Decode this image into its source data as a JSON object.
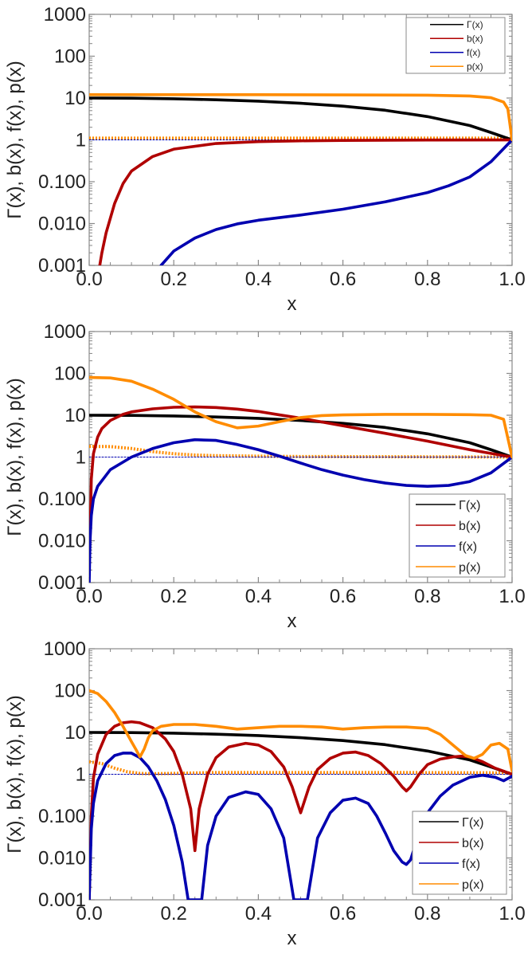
{
  "chart_data": [
    {
      "type": "line",
      "xlabel": "x",
      "ylabel": "Γ(x), b(x), f(x), p(x)",
      "xlim": [
        0.0,
        1.0
      ],
      "ylim": [
        0.001,
        1000
      ],
      "yscale": "log",
      "xticks": [
        "0.0",
        "0.2",
        "0.4",
        "0.6",
        "0.8",
        "1.0"
      ],
      "yticks": [
        "0.001",
        "0.010",
        "0.100",
        "1",
        "10",
        "100",
        "1000"
      ],
      "legend_position": "top-right",
      "legend": [
        "Γ(x)",
        "b(x)",
        "f(x)",
        "p(x)"
      ],
      "series": [
        {
          "name": "Γ(x)",
          "color": "#000000",
          "x": [
            0.0,
            0.1,
            0.2,
            0.3,
            0.4,
            0.5,
            0.6,
            0.7,
            0.8,
            0.9,
            0.95,
            1.0
          ],
          "y": [
            10,
            9.9,
            9.6,
            9.1,
            8.4,
            7.5,
            6.4,
            5.1,
            3.6,
            2.2,
            1.5,
            1.0
          ]
        },
        {
          "name": "b(x)",
          "color": "#b00000",
          "x": [
            0.025,
            0.03,
            0.04,
            0.06,
            0.08,
            0.1,
            0.15,
            0.2,
            0.3,
            0.4,
            0.5,
            0.6,
            0.8,
            1.0
          ],
          "y": [
            0.001,
            0.002,
            0.006,
            0.03,
            0.09,
            0.18,
            0.4,
            0.6,
            0.82,
            0.91,
            0.95,
            0.97,
            0.99,
            1.0
          ]
        },
        {
          "name": "f(x)",
          "color": "#0000b0",
          "x": [
            0.17,
            0.2,
            0.25,
            0.3,
            0.35,
            0.4,
            0.5,
            0.6,
            0.7,
            0.8,
            0.85,
            0.9,
            0.95,
            1.0
          ],
          "y": [
            0.001,
            0.0022,
            0.0045,
            0.0072,
            0.0098,
            0.012,
            0.016,
            0.022,
            0.033,
            0.055,
            0.08,
            0.13,
            0.3,
            1.0
          ]
        },
        {
          "name": "p(x)",
          "color": "#ff8c00",
          "x": [
            0.0,
            0.2,
            0.4,
            0.6,
            0.8,
            0.9,
            0.95,
            0.98,
            0.99,
            1.0
          ],
          "y": [
            12,
            12,
            12,
            11.9,
            11.7,
            11.2,
            10.2,
            8,
            5.5,
            1.0
          ]
        },
        {
          "name": "",
          "color": "#ff8c00",
          "style": "dotted",
          "x": [
            0.0,
            0.5,
            1.0
          ],
          "y": [
            1.1,
            1.1,
            1.1
          ]
        },
        {
          "name": "",
          "color": "#0000b0",
          "style": "thin",
          "x": [
            0.0,
            0.5,
            1.0
          ],
          "y": [
            1.0,
            1.0,
            1.0
          ]
        }
      ]
    },
    {
      "type": "line",
      "xlabel": "x",
      "ylabel": "Γ(x), b(x), f(x), p(x)",
      "xlim": [
        0.0,
        1.0
      ],
      "ylim": [
        0.001,
        1000
      ],
      "yscale": "log",
      "xticks": [
        "0.0",
        "0.2",
        "0.4",
        "0.6",
        "0.8",
        "1.0"
      ],
      "yticks": [
        "0.001",
        "0.010",
        "0.100",
        "1",
        "10",
        "100",
        "1000"
      ],
      "legend_position": "bottom-right",
      "legend": [
        "Γ(x)",
        "b(x)",
        "f(x)",
        "p(x)"
      ],
      "series": [
        {
          "name": "Γ(x)",
          "color": "#000000",
          "x": [
            0.0,
            0.1,
            0.2,
            0.3,
            0.4,
            0.5,
            0.6,
            0.7,
            0.8,
            0.9,
            0.95,
            1.0
          ],
          "y": [
            10,
            9.9,
            9.6,
            9.1,
            8.4,
            7.5,
            6.4,
            5.1,
            3.6,
            2.2,
            1.5,
            1.0
          ]
        },
        {
          "name": "b(x)",
          "color": "#b00000",
          "x": [
            0.002,
            0.005,
            0.01,
            0.02,
            0.03,
            0.05,
            0.08,
            0.1,
            0.15,
            0.2,
            0.25,
            0.3,
            0.35,
            0.4,
            0.45,
            0.5,
            0.6,
            0.7,
            0.8,
            0.9,
            1.0
          ],
          "y": [
            0.01,
            0.3,
            1.2,
            3,
            4.8,
            7.5,
            10.5,
            12,
            14.2,
            15.5,
            15.8,
            15.3,
            14,
            12.3,
            10.2,
            8.5,
            5.6,
            3.7,
            2.4,
            1.5,
            1.0
          ]
        },
        {
          "name": "f(x)",
          "color": "#0000b0",
          "x": [
            0.0,
            0.002,
            0.005,
            0.01,
            0.02,
            0.05,
            0.1,
            0.15,
            0.2,
            0.25,
            0.3,
            0.35,
            0.4,
            0.45,
            0.5,
            0.55,
            0.6,
            0.65,
            0.7,
            0.75,
            0.8,
            0.85,
            0.9,
            0.95,
            1.0
          ],
          "y": [
            0.001,
            0.01,
            0.04,
            0.1,
            0.2,
            0.5,
            1.0,
            1.6,
            2.2,
            2.6,
            2.5,
            2.0,
            1.5,
            1.05,
            0.72,
            0.5,
            0.37,
            0.29,
            0.24,
            0.21,
            0.2,
            0.21,
            0.26,
            0.42,
            1.0
          ]
        },
        {
          "name": "p(x)",
          "color": "#ff8c00",
          "x": [
            0.0,
            0.05,
            0.1,
            0.15,
            0.2,
            0.25,
            0.3,
            0.35,
            0.4,
            0.45,
            0.5,
            0.55,
            0.6,
            0.7,
            0.8,
            0.9,
            0.95,
            0.98,
            1.0
          ],
          "y": [
            80,
            78,
            65,
            42,
            24,
            12,
            7,
            5,
            5.5,
            7,
            8.8,
            9.8,
            10.2,
            10.5,
            10.5,
            10.3,
            10,
            8,
            1.0
          ]
        },
        {
          "name": "",
          "color": "#ff8c00",
          "style": "dotted",
          "x": [
            0.0,
            0.05,
            0.1,
            0.15,
            0.2,
            0.25,
            0.3,
            0.4,
            0.5,
            0.7,
            1.0
          ],
          "y": [
            1.8,
            1.78,
            1.6,
            1.35,
            1.2,
            1.12,
            1.08,
            1.05,
            1.03,
            1.02,
            1.0
          ]
        },
        {
          "name": "",
          "color": "#0000b0",
          "style": "thin",
          "x": [
            0.0,
            0.5,
            1.0
          ],
          "y": [
            1.0,
            1.0,
            1.0
          ]
        }
      ]
    },
    {
      "type": "line",
      "xlabel": "x",
      "ylabel": "Γ(x), b(x), f(x), p(x)",
      "xlim": [
        0.0,
        1.0
      ],
      "ylim": [
        0.001,
        1000
      ],
      "yscale": "log",
      "xticks": [
        "0.0",
        "0.2",
        "0.4",
        "0.6",
        "0.8",
        "1.0"
      ],
      "yticks": [
        "0.001",
        "0.010",
        "0.100",
        "1",
        "10",
        "100",
        "1000"
      ],
      "legend_position": "bottom-right",
      "legend": [
        "Γ(x)",
        "b(x)",
        "f(x)",
        "p(x)"
      ],
      "series": [
        {
          "name": "Γ(x)",
          "color": "#000000",
          "x": [
            0.0,
            0.1,
            0.2,
            0.3,
            0.4,
            0.5,
            0.6,
            0.7,
            0.8,
            0.9,
            0.95,
            1.0
          ],
          "y": [
            10,
            9.9,
            9.6,
            9.1,
            8.4,
            7.5,
            6.4,
            5.1,
            3.6,
            2.2,
            1.5,
            1.0
          ]
        },
        {
          "name": "b(x)",
          "color": "#b00000",
          "x": [
            0.0,
            0.005,
            0.01,
            0.02,
            0.04,
            0.06,
            0.08,
            0.1,
            0.12,
            0.15,
            0.18,
            0.2,
            0.22,
            0.24,
            0.25,
            0.26,
            0.28,
            0.3,
            0.33,
            0.37,
            0.4,
            0.43,
            0.46,
            0.48,
            0.5,
            0.52,
            0.54,
            0.57,
            0.6,
            0.63,
            0.66,
            0.69,
            0.72,
            0.74,
            0.75,
            0.76,
            0.78,
            0.8,
            0.83,
            0.86,
            0.88,
            0.9,
            0.93,
            0.96,
            1.0
          ],
          "y": [
            0.001,
            0.1,
            0.8,
            3,
            9,
            14,
            17,
            18,
            17,
            13,
            7,
            3.5,
            1.0,
            0.15,
            0.015,
            0.15,
            1.0,
            2.5,
            4.5,
            5.5,
            5.0,
            3.5,
            1.5,
            0.5,
            0.12,
            0.5,
            1.3,
            2.4,
            3.2,
            3.4,
            2.8,
            1.8,
            0.9,
            0.5,
            0.4,
            0.5,
            1.0,
            1.7,
            2.3,
            2.6,
            2.7,
            2.6,
            2.0,
            1.4,
            1.0
          ]
        },
        {
          "name": "f(x)",
          "color": "#0000b0",
          "x": [
            0.0,
            0.005,
            0.01,
            0.02,
            0.04,
            0.06,
            0.08,
            0.1,
            0.12,
            0.14,
            0.16,
            0.18,
            0.2,
            0.22,
            0.234,
            0.266,
            0.28,
            0.3,
            0.33,
            0.37,
            0.4,
            0.43,
            0.46,
            0.484,
            0.516,
            0.54,
            0.57,
            0.6,
            0.63,
            0.66,
            0.68,
            0.7,
            0.72,
            0.74,
            0.75,
            0.76,
            0.78,
            0.8,
            0.83,
            0.86,
            0.9,
            0.93,
            0.96,
            0.98,
            1.0
          ],
          "y": [
            0.001,
            0.05,
            0.2,
            0.7,
            1.8,
            2.8,
            3.2,
            3.2,
            2.5,
            1.5,
            0.7,
            0.25,
            0.06,
            0.008,
            0.001,
            0.001,
            0.02,
            0.1,
            0.28,
            0.38,
            0.33,
            0.15,
            0.03,
            0.001,
            0.001,
            0.03,
            0.12,
            0.24,
            0.27,
            0.2,
            0.1,
            0.04,
            0.015,
            0.008,
            0.007,
            0.009,
            0.04,
            0.12,
            0.3,
            0.55,
            0.85,
            0.95,
            0.85,
            0.7,
            0.9
          ]
        },
        {
          "name": "p(x)",
          "color": "#ff8c00",
          "x": [
            0.0,
            0.02,
            0.04,
            0.06,
            0.08,
            0.1,
            0.11,
            0.12,
            0.13,
            0.14,
            0.15,
            0.17,
            0.2,
            0.25,
            0.3,
            0.35,
            0.4,
            0.45,
            0.5,
            0.55,
            0.6,
            0.65,
            0.7,
            0.75,
            0.8,
            0.83,
            0.86,
            0.89,
            0.91,
            0.93,
            0.95,
            0.97,
            0.99,
            1.0
          ],
          "y": [
            100,
            85,
            55,
            30,
            14,
            6,
            4,
            2.6,
            4,
            7.5,
            11,
            14,
            15.5,
            15.5,
            14,
            12,
            13,
            14,
            14,
            13.5,
            12,
            13,
            13.5,
            13.5,
            12.5,
            9,
            5,
            2.8,
            2.4,
            3,
            5,
            5.5,
            4,
            1.2
          ]
        },
        {
          "name": "",
          "color": "#ff8c00",
          "style": "dotted",
          "x": [
            0.0,
            0.03,
            0.06,
            0.09,
            0.12,
            0.15,
            0.2,
            0.3,
            0.5,
            0.7,
            1.0
          ],
          "y": [
            2.0,
            1.8,
            1.4,
            1.15,
            1.05,
            1.03,
            1.05,
            1.1,
            1.1,
            1.1,
            1.08
          ]
        },
        {
          "name": "",
          "color": "#0000b0",
          "style": "thin",
          "x": [
            0.0,
            0.5,
            1.0
          ],
          "y": [
            1.0,
            1.0,
            1.0
          ]
        }
      ]
    }
  ]
}
